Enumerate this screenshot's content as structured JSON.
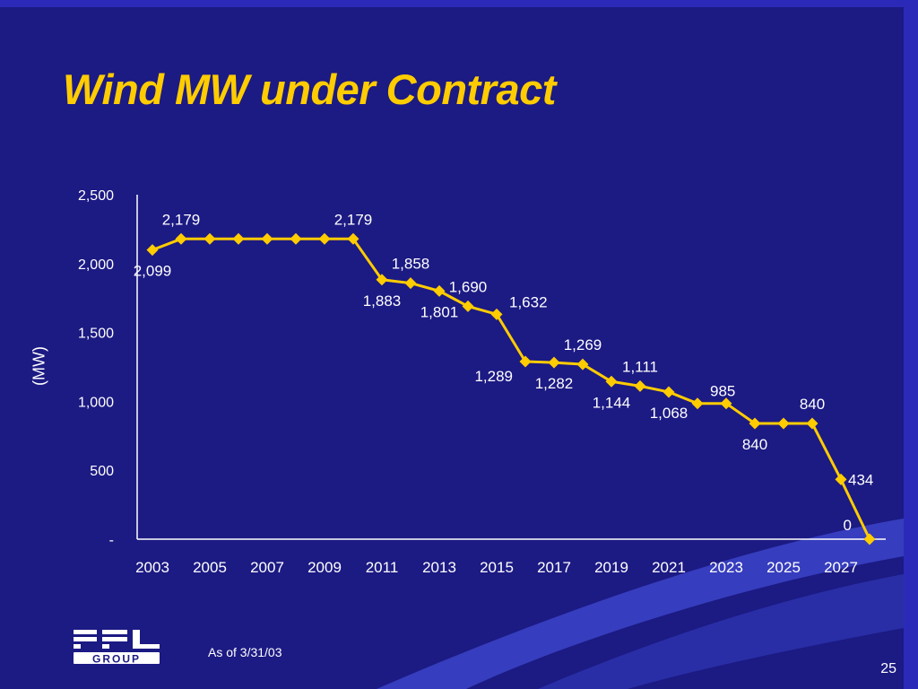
{
  "slide": {
    "title": "Wind MW under Contract",
    "footnote": "As of 3/31/03",
    "page_number": "25",
    "logo_text": "FPL GROUP"
  },
  "colors": {
    "background": "#1c1a83",
    "title": "#ffcc00",
    "series": "#ffcc00",
    "text": "#ffffff"
  },
  "chart_data": {
    "type": "line",
    "title": "",
    "xlabel": "",
    "ylabel": "(MW)",
    "ylim": [
      0,
      2500
    ],
    "yticks": [
      "-",
      "500",
      "1,000",
      "1,500",
      "2,000",
      "2,500"
    ],
    "ytick_values": [
      0,
      500,
      1000,
      1500,
      2000,
      2500
    ],
    "xtick_labels": [
      "2003",
      "2005",
      "2007",
      "2009",
      "2011",
      "2013",
      "2015",
      "2017",
      "2019",
      "2021",
      "2023",
      "2025",
      "2027"
    ],
    "grid": false,
    "legend": "none",
    "x": [
      2003,
      2004,
      2005,
      2006,
      2007,
      2008,
      2009,
      2010,
      2011,
      2012,
      2013,
      2014,
      2015,
      2016,
      2017,
      2018,
      2019,
      2020,
      2021,
      2022,
      2023,
      2024,
      2025,
      2026,
      2027,
      2028
    ],
    "values": [
      2099,
      2179,
      2179,
      2179,
      2179,
      2179,
      2179,
      2179,
      1883,
      1858,
      1801,
      1690,
      1632,
      1289,
      1282,
      1269,
      1144,
      1111,
      1068,
      985,
      985,
      840,
      840,
      840,
      434,
      0
    ],
    "data_labels": [
      {
        "index": 0,
        "text": "2,099",
        "pos": "below"
      },
      {
        "index": 1,
        "text": "2,179",
        "pos": "above"
      },
      {
        "index": 7,
        "text": "2,179",
        "pos": "above"
      },
      {
        "index": 8,
        "text": "1,883",
        "pos": "below"
      },
      {
        "index": 9,
        "text": "1,858",
        "pos": "above"
      },
      {
        "index": 10,
        "text": "1,801",
        "pos": "below"
      },
      {
        "index": 11,
        "text": "1,690",
        "pos": "above"
      },
      {
        "index": 12,
        "text": "1,632",
        "pos": "above-right"
      },
      {
        "index": 13,
        "text": "1,289",
        "pos": "below-left"
      },
      {
        "index": 14,
        "text": "1,282",
        "pos": "below"
      },
      {
        "index": 15,
        "text": "1,269",
        "pos": "above"
      },
      {
        "index": 16,
        "text": "1,144",
        "pos": "below"
      },
      {
        "index": 17,
        "text": "1,111",
        "pos": "above"
      },
      {
        "index": 18,
        "text": "1,068",
        "pos": "below"
      },
      {
        "index": 19,
        "text": "985",
        "pos": "above-right"
      },
      {
        "index": 21,
        "text": "840",
        "pos": "below"
      },
      {
        "index": 23,
        "text": "840",
        "pos": "above"
      },
      {
        "index": 24,
        "text": "434",
        "pos": "right"
      },
      {
        "index": 25,
        "text": "0",
        "pos": "above-left"
      }
    ]
  }
}
